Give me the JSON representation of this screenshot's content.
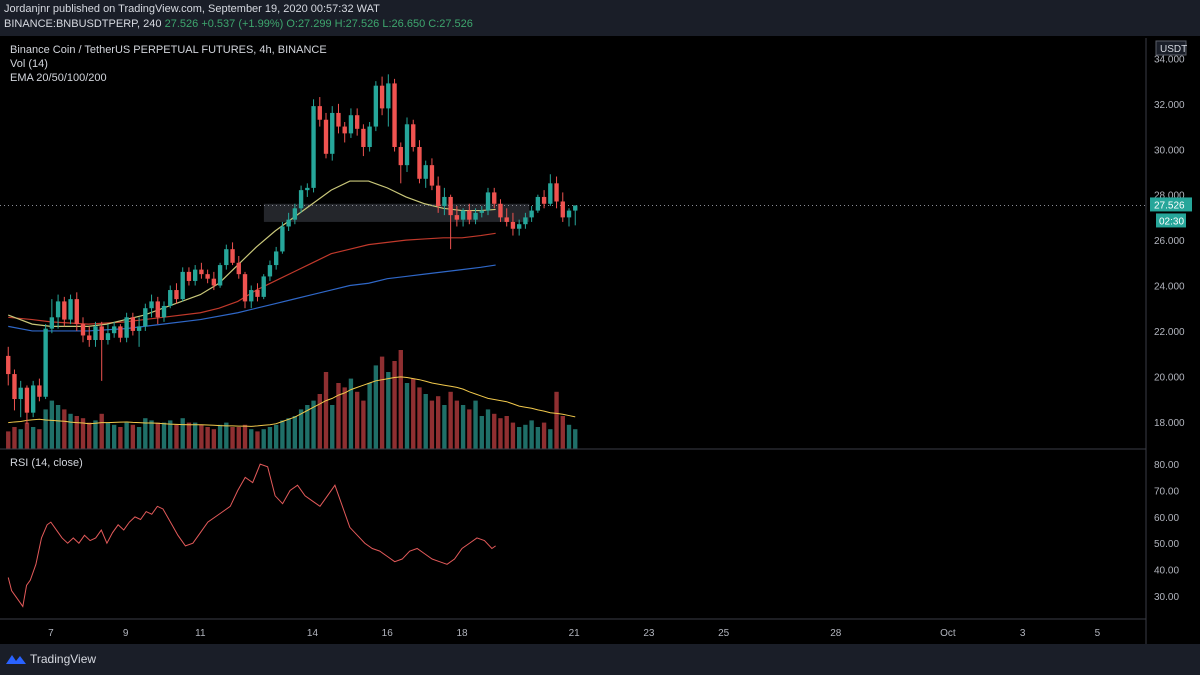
{
  "header": {
    "line1": "Jordanjnr published on TradingView.com, September 19, 2020 00:57:32 WAT",
    "symbol_line": {
      "symbol": "BINANCE:BNBUSDTPERP, 240",
      "last": "27.526",
      "change": "+0.537 (+1.99%)",
      "o": "O:27.299",
      "h": "H:27.526",
      "l": "L:26.650",
      "c": "C:27.526"
    }
  },
  "legend": {
    "title": "Binance Coin / TetherUS PERPETUAL FUTURES, 4h, BINANCE",
    "vol": "Vol (14)",
    "ema": "EMA 20/50/100/200",
    "rsi": "RSI (14, close)"
  },
  "price_axis": {
    "currency": "USDT",
    "last_price": "27.526",
    "countdown": "02:30",
    "ticks": [
      "34.000",
      "32.000",
      "30.000",
      "28.000",
      "26.000",
      "24.000",
      "22.000",
      "20.000",
      "18.000"
    ]
  },
  "rsi_axis": {
    "ticks": [
      "80.00",
      "70.00",
      "60.00",
      "50.00",
      "40.00",
      "30.00"
    ]
  },
  "time_axis": {
    "ticks": [
      "7",
      "9",
      "11",
      "14",
      "16",
      "18",
      "21",
      "23",
      "25",
      "28",
      "Oct",
      "3",
      "5"
    ]
  },
  "footer": {
    "brand": "TradingView"
  },
  "colors": {
    "up": "#26a69a",
    "down": "#ef5350",
    "ema20": "#c9c77a",
    "ema50": "#c0392b",
    "ema100": "#2f67c7",
    "rsi": "#e35a5a",
    "vol_ma": "#f2c94c",
    "zone": "#2a2d33"
  },
  "chart_data": [
    {
      "type": "candlestick",
      "title": "Binance Coin / TetherUS PERPETUAL FUTURES, 4h, BINANCE",
      "ylim": [
        16.8,
        34.9
      ],
      "x_range_days": [
        5.8,
        26
      ],
      "start_day": 5.86,
      "interval_days": 0.1667,
      "ohlc": [
        [
          20.9,
          21.3,
          19.6,
          20.1
        ],
        [
          20.1,
          20.3,
          18.5,
          19.0
        ],
        [
          19.0,
          19.8,
          18.2,
          19.5
        ],
        [
          19.5,
          19.6,
          17.9,
          18.4
        ],
        [
          18.4,
          19.8,
          18.2,
          19.6
        ],
        [
          19.6,
          19.9,
          18.9,
          19.1
        ],
        [
          19.1,
          22.3,
          19.0,
          22.1
        ],
        [
          22.1,
          23.4,
          21.9,
          22.6
        ],
        [
          22.6,
          23.6,
          22.1,
          23.3
        ],
        [
          23.3,
          23.5,
          22.2,
          22.5
        ],
        [
          22.5,
          23.6,
          22.3,
          23.4
        ],
        [
          23.4,
          23.7,
          22.0,
          22.3
        ],
        [
          22.3,
          22.6,
          21.5,
          21.8
        ],
        [
          21.8,
          22.2,
          21.3,
          21.6
        ],
        [
          21.6,
          22.4,
          21.3,
          22.2
        ],
        [
          22.2,
          22.4,
          19.8,
          21.6
        ],
        [
          21.6,
          22.3,
          21.4,
          21.9
        ],
        [
          21.9,
          22.4,
          21.7,
          22.2
        ],
        [
          22.2,
          22.3,
          21.5,
          21.7
        ],
        [
          21.7,
          22.8,
          21.5,
          22.6
        ],
        [
          22.6,
          22.8,
          21.8,
          22.0
        ],
        [
          22.0,
          22.6,
          21.3,
          22.2
        ],
        [
          22.2,
          23.2,
          22.0,
          23.0
        ],
        [
          23.0,
          23.6,
          22.6,
          23.3
        ],
        [
          23.3,
          23.5,
          22.3,
          22.6
        ],
        [
          22.6,
          23.3,
          22.4,
          23.1
        ],
        [
          23.1,
          24.0,
          23.0,
          23.8
        ],
        [
          23.8,
          24.1,
          23.2,
          23.4
        ],
        [
          23.4,
          24.8,
          23.3,
          24.6
        ],
        [
          24.6,
          24.8,
          24.0,
          24.2
        ],
        [
          24.2,
          24.9,
          24.0,
          24.7
        ],
        [
          24.7,
          25.0,
          24.3,
          24.5
        ],
        [
          24.5,
          24.7,
          24.1,
          24.3
        ],
        [
          24.3,
          24.6,
          23.8,
          24.0
        ],
        [
          24.0,
          25.0,
          23.9,
          24.9
        ],
        [
          24.9,
          25.8,
          24.7,
          25.6
        ],
        [
          25.6,
          25.9,
          24.9,
          25.0
        ],
        [
          25.0,
          25.3,
          24.3,
          24.5
        ],
        [
          24.5,
          24.6,
          23.0,
          23.3
        ],
        [
          23.3,
          24.0,
          23.0,
          23.8
        ],
        [
          23.8,
          24.1,
          23.3,
          23.5
        ],
        [
          23.5,
          24.5,
          23.4,
          24.4
        ],
        [
          24.4,
          25.1,
          24.2,
          24.9
        ],
        [
          24.9,
          25.7,
          24.7,
          25.5
        ],
        [
          25.5,
          26.8,
          25.4,
          26.6
        ],
        [
          26.6,
          27.2,
          26.4,
          26.9
        ],
        [
          26.9,
          27.6,
          26.7,
          27.4
        ],
        [
          27.4,
          28.4,
          27.2,
          28.2
        ],
        [
          28.2,
          28.5,
          27.9,
          28.3
        ],
        [
          28.3,
          32.2,
          28.1,
          31.9
        ],
        [
          31.9,
          32.3,
          31.0,
          31.3
        ],
        [
          31.3,
          31.6,
          29.6,
          29.8
        ],
        [
          29.8,
          31.9,
          29.5,
          31.6
        ],
        [
          31.6,
          32.0,
          30.7,
          31.0
        ],
        [
          31.0,
          31.2,
          30.3,
          30.7
        ],
        [
          30.7,
          31.8,
          30.5,
          31.5
        ],
        [
          31.5,
          31.8,
          30.6,
          30.9
        ],
        [
          30.9,
          31.1,
          29.7,
          30.1
        ],
        [
          30.1,
          31.2,
          29.9,
          31.0
        ],
        [
          31.0,
          33.0,
          30.8,
          32.8
        ],
        [
          32.8,
          33.2,
          31.5,
          31.8
        ],
        [
          31.8,
          33.3,
          31.0,
          32.9
        ],
        [
          32.9,
          33.1,
          29.9,
          30.1
        ],
        [
          30.1,
          30.3,
          28.5,
          29.3
        ],
        [
          29.3,
          31.4,
          29.0,
          31.1
        ],
        [
          31.1,
          31.3,
          29.9,
          30.1
        ],
        [
          30.1,
          30.4,
          28.5,
          28.7
        ],
        [
          28.7,
          29.5,
          28.3,
          29.3
        ],
        [
          29.3,
          29.6,
          28.2,
          28.4
        ],
        [
          28.4,
          28.8,
          27.2,
          27.5
        ],
        [
          27.5,
          28.3,
          27.1,
          27.9
        ],
        [
          27.9,
          28.0,
          25.6,
          27.1
        ],
        [
          27.1,
          27.5,
          26.6,
          26.9
        ],
        [
          26.9,
          27.4,
          26.6,
          27.3
        ],
        [
          27.3,
          27.6,
          26.7,
          26.9
        ],
        [
          26.9,
          27.4,
          26.7,
          27.2
        ],
        [
          27.2,
          27.5,
          27.0,
          27.3
        ],
        [
          27.3,
          28.3,
          27.1,
          28.1
        ],
        [
          28.1,
          28.3,
          27.4,
          27.6
        ],
        [
          27.6,
          27.8,
          26.8,
          27.0
        ],
        [
          27.0,
          27.4,
          26.6,
          26.8
        ],
        [
          26.8,
          27.2,
          26.2,
          26.5
        ],
        [
          26.5,
          26.9,
          26.2,
          26.7
        ],
        [
          26.7,
          27.2,
          26.5,
          27.0
        ],
        [
          27.0,
          27.5,
          26.8,
          27.3
        ],
        [
          27.3,
          28.0,
          27.2,
          27.9
        ],
        [
          27.9,
          28.2,
          27.4,
          27.6
        ],
        [
          27.6,
          28.9,
          27.5,
          28.5
        ],
        [
          28.5,
          28.8,
          27.4,
          27.7
        ],
        [
          27.7,
          28.1,
          26.8,
          27.0
        ],
        [
          27.0,
          27.4,
          26.6,
          27.3
        ],
        [
          27.299,
          27.526,
          26.65,
          27.526
        ]
      ],
      "volume": [
        8,
        10,
        9,
        12,
        10,
        9,
        18,
        22,
        20,
        18,
        16,
        15,
        14,
        12,
        13,
        16,
        12,
        11,
        10,
        12,
        11,
        10,
        14,
        13,
        12,
        12,
        13,
        11,
        14,
        12,
        12,
        11,
        10,
        9,
        11,
        12,
        10,
        10,
        11,
        9,
        8,
        9,
        10,
        11,
        13,
        14,
        15,
        18,
        20,
        22,
        25,
        35,
        20,
        30,
        28,
        32,
        26,
        22,
        30,
        38,
        42,
        35,
        40,
        45,
        30,
        32,
        28,
        25,
        22,
        24,
        20,
        26,
        22,
        20,
        18,
        22,
        15,
        18,
        16,
        14,
        15,
        12,
        10,
        11,
        13,
        10,
        12,
        9,
        26,
        15,
        11,
        9
      ],
      "vol_ma": [
        12,
        12.3,
        12.5,
        13,
        13.3,
        13.5,
        13.2,
        13,
        12.8,
        12.6,
        12.2,
        12,
        11.8,
        11.5,
        11.7,
        12,
        12,
        12.1,
        12.2,
        12.3,
        12.1,
        12,
        11.8,
        11.8,
        11.7,
        11.5,
        11.3,
        11.2,
        11.1,
        11,
        11,
        11,
        10.9,
        10.8,
        10.6,
        10.5,
        10.5,
        10.4,
        10.4,
        10.3,
        10.5,
        10.8,
        11,
        11.5,
        12.5,
        13.5,
        14.5,
        16,
        17.5,
        19,
        20.5,
        22,
        23,
        24.5,
        25.5,
        27,
        28,
        29,
        30,
        31,
        31.5,
        32,
        32.5,
        32.8,
        32.5,
        32,
        31.5,
        30.8,
        30,
        29.5,
        29,
        28.5,
        28,
        27.2,
        26,
        25,
        24,
        23,
        22.5,
        22,
        21.5,
        20.5,
        19.5,
        19,
        18.5,
        17.8,
        17.2,
        16.5,
        16.2,
        15.8,
        15.2,
        14.6
      ],
      "ema20": [
        [
          5.86,
          22.7
        ],
        [
          6.5,
          22.3
        ],
        [
          7,
          22.2
        ],
        [
          8,
          22.2
        ],
        [
          8.5,
          22.3
        ],
        [
          9,
          22.5
        ],
        [
          9.5,
          22.7
        ],
        [
          10,
          23.0
        ],
        [
          10.5,
          23.3
        ],
        [
          11,
          23.6
        ],
        [
          11.5,
          24.1
        ],
        [
          12,
          24.9
        ],
        [
          12.5,
          25.7
        ],
        [
          13,
          26.4
        ],
        [
          13.5,
          27.0
        ],
        [
          14,
          27.6
        ],
        [
          14.5,
          28.2
        ],
        [
          15,
          28.6
        ],
        [
          15.5,
          28.6
        ],
        [
          16,
          28.3
        ],
        [
          16.5,
          27.9
        ],
        [
          17,
          27.6
        ],
        [
          17.5,
          27.4
        ],
        [
          18,
          27.3
        ],
        [
          18.5,
          27.3
        ],
        [
          18.9,
          27.35
        ]
      ],
      "ema50": [
        [
          5.86,
          22.6
        ],
        [
          6.5,
          22.5
        ],
        [
          7,
          22.4
        ],
        [
          8,
          22.3
        ],
        [
          9,
          22.4
        ],
        [
          10,
          22.6
        ],
        [
          11,
          22.8
        ],
        [
          11.5,
          23.0
        ],
        [
          12,
          23.3
        ],
        [
          12.5,
          23.8
        ],
        [
          13,
          24.2
        ],
        [
          13.5,
          24.6
        ],
        [
          14,
          25.0
        ],
        [
          14.5,
          25.4
        ],
        [
          15,
          25.6
        ],
        [
          15.5,
          25.8
        ],
        [
          16,
          25.9
        ],
        [
          16.5,
          26.0
        ],
        [
          17,
          26.05
        ],
        [
          17.5,
          26.1
        ],
        [
          18,
          26.1
        ],
        [
          18.5,
          26.2
        ],
        [
          18.9,
          26.3
        ]
      ],
      "ema100": [
        [
          5.86,
          22.2
        ],
        [
          6.5,
          22.0
        ],
        [
          7,
          22.0
        ],
        [
          8,
          22.0
        ],
        [
          9,
          22.1
        ],
        [
          10,
          22.3
        ],
        [
          11,
          22.5
        ],
        [
          12,
          22.8
        ],
        [
          12.5,
          23.0
        ],
        [
          13,
          23.2
        ],
        [
          13.5,
          23.4
        ],
        [
          14,
          23.6
        ],
        [
          14.5,
          23.8
        ],
        [
          15,
          24.0
        ],
        [
          15.5,
          24.1
        ],
        [
          16,
          24.3
        ],
        [
          16.5,
          24.4
        ],
        [
          17,
          24.5
        ],
        [
          17.5,
          24.6
        ],
        [
          18,
          24.7
        ],
        [
          18.5,
          24.8
        ],
        [
          18.9,
          24.9
        ]
      ],
      "zone": {
        "y_low": 26.8,
        "y_high": 27.6,
        "x_start": 12.7,
        "x_end": 19.8
      },
      "last_price": 27.526
    },
    {
      "type": "line",
      "name": "RSI (14, close)",
      "ylim": [
        22,
        85
      ],
      "x": [
        5.86,
        5.95,
        6.05,
        6.15,
        6.25,
        6.35,
        6.45,
        6.6,
        6.75,
        6.9,
        7.0,
        7.15,
        7.3,
        7.45,
        7.6,
        7.75,
        7.9,
        8.05,
        8.2,
        8.35,
        8.5,
        8.65,
        8.8,
        8.95,
        9.1,
        9.25,
        9.4,
        9.55,
        9.7,
        9.85,
        10.0,
        10.2,
        10.4,
        10.6,
        10.8,
        11.0,
        11.2,
        11.4,
        11.6,
        11.8,
        12.0,
        12.2,
        12.4,
        12.6,
        12.8,
        13.0,
        13.2,
        13.4,
        13.6,
        13.8,
        14.0,
        14.2,
        14.4,
        14.6,
        14.8,
        15.0,
        15.2,
        15.4,
        15.6,
        15.8,
        16.0,
        16.2,
        16.4,
        16.6,
        16.8,
        17.0,
        17.2,
        17.4,
        17.6,
        17.8,
        18.0,
        18.2,
        18.4,
        18.6,
        18.8,
        18.9
      ],
      "values": [
        37,
        32,
        30,
        28,
        26,
        34,
        36,
        42,
        52,
        57,
        58,
        55,
        52,
        50,
        52,
        50,
        53,
        51,
        52,
        55,
        50,
        54,
        57,
        55,
        58,
        60,
        59,
        62,
        61,
        64,
        63,
        58,
        53,
        49,
        50,
        54,
        58,
        60,
        62,
        64,
        70,
        75,
        73,
        80,
        79,
        68,
        65,
        70,
        72,
        68,
        66,
        64,
        68,
        72,
        64,
        56,
        53,
        50,
        48,
        47,
        45,
        43,
        44,
        47,
        48,
        46,
        44,
        43,
        42,
        44,
        48,
        50,
        52,
        51,
        48,
        49
      ]
    }
  ]
}
